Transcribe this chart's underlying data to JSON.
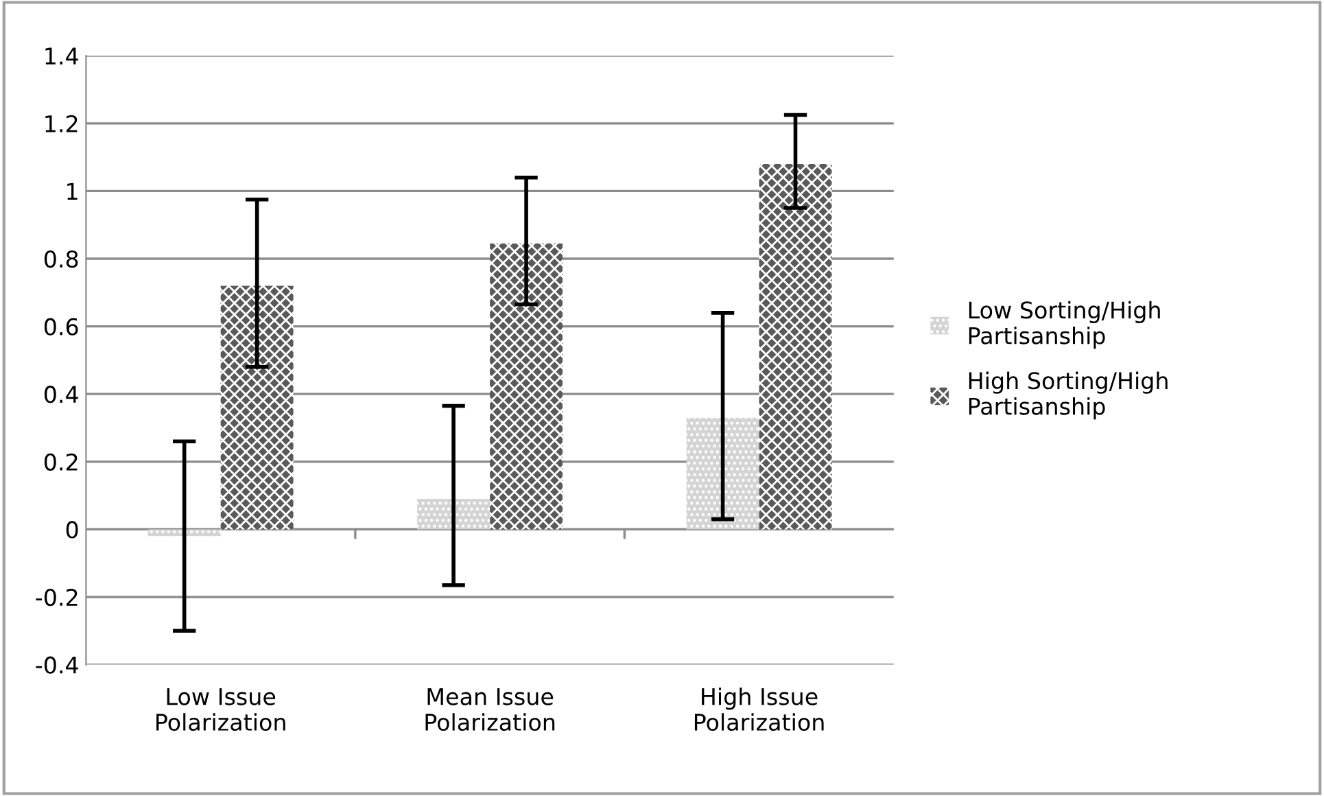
{
  "chart_data": {
    "type": "bar",
    "categories": [
      "Low Issue\nPolarization",
      "Mean Issue\nPolarization",
      "High Issue\nPolarization"
    ],
    "series": [
      {
        "name": "Low Sorting/High\nPartisanship",
        "color": "#d4d4d4",
        "values": [
          -0.02,
          0.09,
          0.33
        ],
        "errors": [
          [
            -0.3,
            0.26
          ],
          [
            -0.165,
            0.365
          ],
          [
            0.03,
            0.64
          ]
        ]
      },
      {
        "name": "High Sorting/High\nPartisanship",
        "color": "#5a5a5a",
        "values": [
          0.72,
          0.845,
          1.08
        ],
        "errors": [
          [
            0.48,
            0.975
          ],
          [
            0.665,
            1.04
          ],
          [
            0.95,
            1.225
          ]
        ]
      }
    ],
    "ylim": [
      -0.4,
      1.4
    ],
    "yticks": [
      -0.4,
      -0.2,
      0,
      0.2,
      0.4,
      0.6,
      0.8,
      1,
      1.2,
      1.4
    ],
    "grid": "y",
    "legend": "right"
  }
}
